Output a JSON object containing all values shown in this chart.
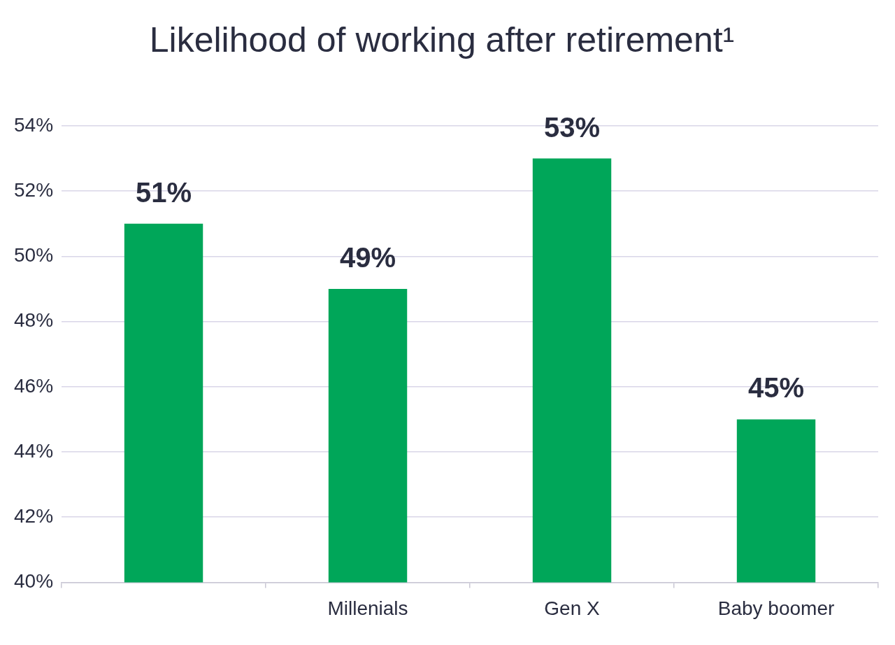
{
  "chart_data": {
    "type": "bar",
    "title": "Likelihood of working after retirement¹",
    "categories": [
      null,
      "Millenials",
      "Gen X",
      "Baby boomer"
    ],
    "values": [
      51,
      49,
      53,
      45
    ],
    "color": "#00a659",
    "value_labels": [
      "51%",
      "49%",
      "53%",
      "45%"
    ],
    "ylim": [
      40,
      54
    ],
    "yticks": [
      {
        "value": 40,
        "label": "40%"
      },
      {
        "value": 42,
        "label": "42%"
      },
      {
        "value": 44,
        "label": "44%"
      },
      {
        "value": 46,
        "label": "46%"
      },
      {
        "value": 48,
        "label": "48%"
      },
      {
        "value": 50,
        "label": "50%"
      },
      {
        "value": 52,
        "label": "52%"
      },
      {
        "value": 54,
        "label": "54%"
      }
    ],
    "grid": "y",
    "legend": false
  }
}
